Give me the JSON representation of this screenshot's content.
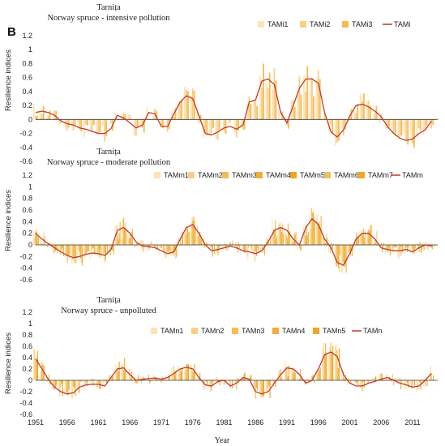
{
  "panel_letter": "B",
  "colors": {
    "line": "#c0392b",
    "bars": [
      "#fde3b7",
      "#f9cf86",
      "#f7bb55",
      "#f3ad34",
      "#efa51f",
      "#ecc062",
      "#f1a81a"
    ]
  },
  "chart_data": [
    {
      "type": "bar",
      "title": "Tarnița",
      "subtitle": "Norway spruce - intensive pollution",
      "ylabel": "Resilience indices",
      "xlabel": "",
      "ylim": [
        -0.6,
        1.2
      ],
      "xlim": [
        1951,
        2015
      ],
      "yticks": [
        "-0.6",
        "-0.4",
        "-0.2",
        "0",
        "0.2",
        "0.4",
        "0.6",
        "0.8",
        "1",
        "1.2"
      ],
      "legend_position": "top-right",
      "bar_series": [
        "TAMi1",
        "TAMi2",
        "TAMi3"
      ],
      "line_series": "TAMi",
      "line": {
        "x": [
          1951,
          1952,
          1953,
          1954,
          1955,
          1956,
          1957,
          1958,
          1959,
          1960,
          1961,
          1962,
          1963,
          1964,
          1965,
          1966,
          1967,
          1968,
          1969,
          1970,
          1971,
          1972,
          1973,
          1974,
          1975,
          1976,
          1977,
          1978,
          1979,
          1980,
          1981,
          1982,
          1983,
          1984,
          1985,
          1986,
          1987,
          1988,
          1989,
          1990,
          1991,
          1992,
          1993,
          1994,
          1995,
          1996,
          1997,
          1998,
          1999,
          2000,
          2001,
          2002,
          2003,
          2004,
          2005,
          2006,
          2007,
          2008,
          2009,
          2010,
          2011,
          2012,
          2013,
          2014
        ],
        "y": [
          0.1,
          0.12,
          0.1,
          0.06,
          -0.02,
          -0.06,
          -0.08,
          -0.12,
          -0.14,
          -0.17,
          -0.2,
          -0.2,
          -0.13,
          0.06,
          0.02,
          -0.05,
          -0.12,
          -0.08,
          0.1,
          0.08,
          -0.1,
          -0.1,
          0.08,
          0.25,
          0.34,
          0.3,
          0.05,
          -0.2,
          -0.22,
          -0.18,
          -0.12,
          -0.1,
          -0.14,
          -0.08,
          0.25,
          0.28,
          0.55,
          0.58,
          0.5,
          0.1,
          -0.05,
          0.2,
          0.45,
          0.58,
          0.58,
          0.52,
          0.1,
          -0.18,
          -0.25,
          -0.15,
          0.05,
          0.2,
          0.22,
          0.18,
          0.12,
          0.04,
          -0.1,
          -0.2,
          -0.27,
          -0.3,
          -0.28,
          -0.2,
          -0.15,
          -0.02
        ]
      }
    },
    {
      "type": "bar",
      "title": "Tarnița",
      "subtitle": "Norway spruce - moderate pollution",
      "ylabel": "Resilience indices",
      "xlabel": "",
      "ylim": [
        -0.6,
        1.2
      ],
      "xlim": [
        1951,
        2015
      ],
      "yticks": [
        "-0.6",
        "-0.4",
        "-0.2",
        "0",
        "0.2",
        "0.4",
        "0.6",
        "0.8",
        "1",
        "1.2"
      ],
      "legend_position": "top-right",
      "bar_series": [
        "TAMm1",
        "TAMm2",
        "TAMm3",
        "TAMm4",
        "TAMm5",
        "TAMm6",
        "TAMm7"
      ],
      "line_series": "TAMm",
      "line": {
        "x": [
          1951,
          1952,
          1953,
          1954,
          1955,
          1956,
          1957,
          1958,
          1959,
          1960,
          1961,
          1962,
          1963,
          1964,
          1965,
          1966,
          1967,
          1968,
          1969,
          1970,
          1971,
          1972,
          1973,
          1974,
          1975,
          1976,
          1977,
          1978,
          1979,
          1980,
          1981,
          1982,
          1983,
          1984,
          1985,
          1986,
          1987,
          1988,
          1989,
          1990,
          1991,
          1992,
          1993,
          1994,
          1995,
          1996,
          1997,
          1998,
          1999,
          2000,
          2001,
          2002,
          2003,
          2004,
          2005,
          2006,
          2007,
          2008,
          2009,
          2010,
          2011,
          2012,
          2013,
          2014
        ],
        "y": [
          0.2,
          0.1,
          0.02,
          -0.05,
          -0.12,
          -0.18,
          -0.22,
          -0.2,
          -0.16,
          -0.14,
          -0.15,
          -0.18,
          -0.08,
          0.25,
          0.3,
          0.2,
          0.05,
          -0.02,
          -0.03,
          -0.05,
          -0.1,
          -0.15,
          -0.12,
          0.1,
          0.3,
          0.35,
          0.2,
          0.0,
          -0.1,
          -0.08,
          -0.05,
          -0.02,
          -0.05,
          -0.1,
          -0.12,
          -0.15,
          -0.1,
          0.05,
          0.25,
          0.3,
          0.25,
          0.1,
          0.0,
          0.3,
          0.45,
          0.35,
          0.1,
          -0.05,
          -0.3,
          -0.35,
          -0.15,
          0.1,
          0.2,
          0.2,
          0.1,
          -0.05,
          -0.08,
          -0.1,
          -0.1,
          -0.08,
          -0.12,
          -0.05,
          0.0,
          -0.02
        ]
      }
    },
    {
      "type": "bar",
      "title": "Tarnița",
      "subtitle": "Norway spruce - unpolluted",
      "ylabel": "Resilience indices",
      "xlabel": "Year",
      "ylim": [
        -0.6,
        1.2
      ],
      "xlim": [
        1951,
        2015
      ],
      "yticks": [
        "-0.6",
        "-0.4",
        "-0.2",
        "0",
        "0.2",
        "0.4",
        "0.6",
        "0.8",
        "1",
        "1.2"
      ],
      "xticks": [
        "1951",
        "1956",
        "1961",
        "1966",
        "1971",
        "1976",
        "1981",
        "1986",
        "1991",
        "1996",
        "2001",
        "2006",
        "2011"
      ],
      "legend_position": "top-right",
      "bar_series": [
        "TAMn1",
        "TAMn2",
        "TAMn3",
        "TAMn4",
        "TAMn5"
      ],
      "line_series": "TAMn",
      "line": {
        "x": [
          1951,
          1952,
          1953,
          1954,
          1955,
          1956,
          1957,
          1958,
          1959,
          1960,
          1961,
          1962,
          1963,
          1964,
          1965,
          1966,
          1967,
          1968,
          1969,
          1970,
          1971,
          1972,
          1973,
          1974,
          1975,
          1976,
          1977,
          1978,
          1979,
          1980,
          1981,
          1982,
          1983,
          1984,
          1985,
          1986,
          1987,
          1988,
          1989,
          1990,
          1991,
          1992,
          1993,
          1994,
          1995,
          1996,
          1997,
          1998,
          1999,
          2000,
          2001,
          2002,
          2003,
          2004,
          2005,
          2006,
          2007,
          2008,
          2009,
          2010,
          2011,
          2012,
          2013,
          2014
        ],
        "y": [
          0.38,
          0.2,
          0.02,
          -0.12,
          -0.2,
          -0.24,
          -0.22,
          -0.12,
          -0.08,
          -0.07,
          -0.07,
          -0.1,
          0.05,
          0.2,
          0.22,
          0.1,
          0.0,
          0.02,
          0.03,
          0.04,
          0.02,
          0.05,
          0.12,
          0.2,
          0.23,
          0.2,
          0.05,
          -0.08,
          -0.1,
          -0.02,
          0.0,
          -0.1,
          -0.05,
          0.05,
          0.02,
          -0.2,
          -0.24,
          -0.2,
          -0.05,
          0.1,
          0.22,
          0.2,
          0.1,
          -0.05,
          0.0,
          0.2,
          0.45,
          0.5,
          0.42,
          0.1,
          -0.05,
          -0.1,
          -0.1,
          -0.05,
          -0.02,
          0.02,
          0.05,
          0.0,
          -0.05,
          -0.08,
          -0.12,
          -0.1,
          0.0,
          0.12
        ]
      }
    }
  ]
}
